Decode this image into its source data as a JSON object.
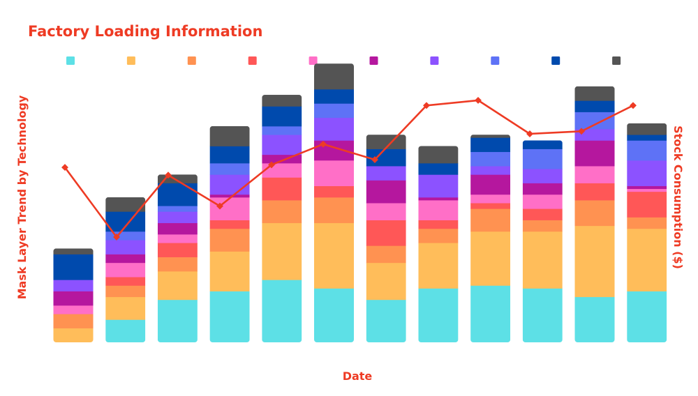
{
  "colors": {
    "accent": "#ee3b24",
    "series": [
      "#5de0e6",
      "#ffbd5a",
      "#ff9251",
      "#ff5757",
      "#ff6fc7",
      "#b5179e",
      "#8c52ff",
      "#5e72f6",
      "#004aad",
      "#545454"
    ]
  },
  "chart_data": {
    "type": "bar",
    "stacked": true,
    "title": "Factory Loading Information",
    "xlabel": "Date",
    "ylabel": "Mask Layer Trend by Technology",
    "y2label": "Stock Consumption ($)",
    "categories": [
      "",
      "",
      "",
      "",
      "",
      "",
      "",
      "",
      "",
      "",
      "",
      ""
    ],
    "legend_position": "top",
    "grid": false,
    "ylim": [
      0,
      100
    ],
    "y2lim": [
      0,
      100
    ],
    "series": [
      {
        "values": [
          0,
          8,
          15,
          18,
          22,
          19,
          15,
          19,
          20,
          19,
          16,
          18
        ]
      },
      {
        "values": [
          5,
          8,
          10,
          14,
          20,
          23,
          13,
          16,
          19,
          20,
          25,
          22
        ]
      },
      {
        "values": [
          5,
          4,
          5,
          8,
          8,
          9,
          6,
          5,
          8,
          4,
          9,
          4
        ]
      },
      {
        "values": [
          0,
          3,
          5,
          3,
          8,
          4,
          9,
          3,
          2,
          4,
          6,
          9
        ]
      },
      {
        "values": [
          3,
          5,
          3,
          8,
          5,
          9,
          6,
          7,
          3,
          5,
          6,
          1
        ]
      },
      {
        "values": [
          5,
          3,
          4,
          1,
          3,
          7,
          8,
          1,
          7,
          4,
          9,
          1
        ]
      },
      {
        "values": [
          4,
          5,
          4,
          7,
          7,
          8,
          5,
          8,
          3,
          5,
          4,
          9
        ]
      },
      {
        "values": [
          0,
          3,
          2,
          4,
          3,
          5,
          0,
          0,
          5,
          7,
          6,
          7
        ]
      },
      {
        "values": [
          9,
          7,
          8,
          6,
          7,
          5,
          6,
          4,
          5,
          3,
          4,
          2
        ]
      },
      {
        "values": [
          2,
          5,
          3,
          7,
          4,
          9,
          5,
          6,
          1,
          0,
          5,
          4
        ]
      }
    ],
    "line": {
      "values": [
        67,
        40,
        64,
        52,
        68,
        76,
        70,
        91,
        93,
        80,
        81,
        91
      ]
    }
  }
}
